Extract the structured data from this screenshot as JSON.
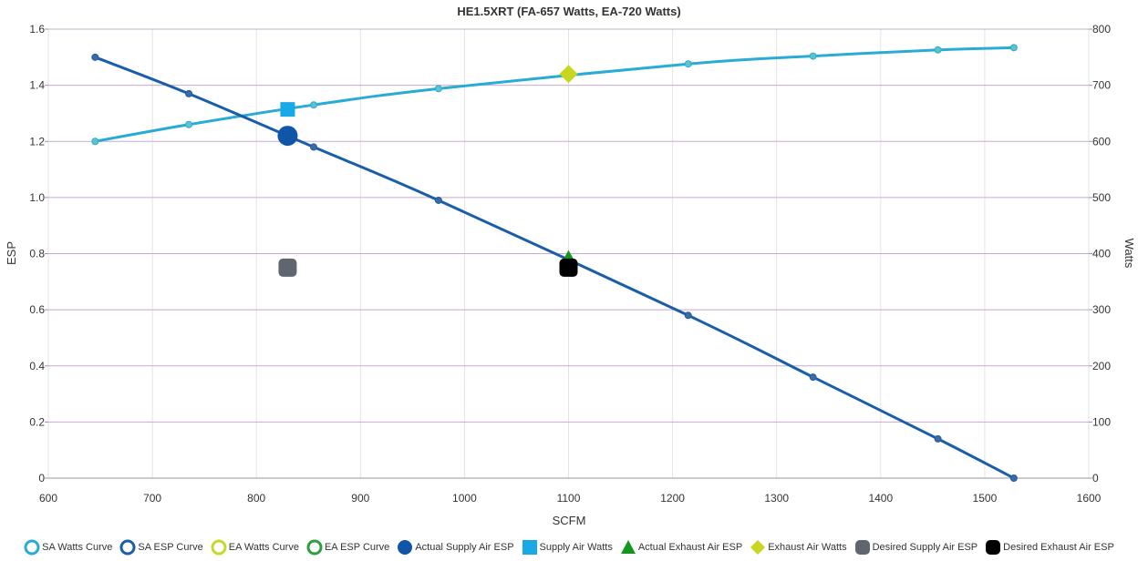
{
  "chart_data": {
    "type": "line",
    "title": "HE1.5XRT (FA-657 Watts, EA-720 Watts)",
    "xlabel": "SCFM",
    "ylabel_left": "ESP",
    "ylabel_right": "Watts",
    "xlim": [
      600,
      1600
    ],
    "ylim_left": [
      0,
      1.6
    ],
    "ylim_right": [
      0,
      800
    ],
    "x_ticks": [
      "600",
      "700",
      "800",
      "900",
      "1000",
      "1100",
      "1200",
      "1300",
      "1400",
      "1500",
      "1600"
    ],
    "y_left_ticks": [
      "0",
      "0.2",
      "0.4",
      "0.6",
      "0.8",
      "1.0",
      "1.2",
      "1.4",
      "1.6"
    ],
    "y_right_ticks": [
      "0",
      "100",
      "200",
      "300",
      "400",
      "500",
      "600",
      "700",
      "800"
    ],
    "grid": true,
    "legend_position": "bottom",
    "series": [
      {
        "name": "SA Watts Curve",
        "axis": "right",
        "kind": "line",
        "color": "#29abd6",
        "x": [
          645,
          735,
          855,
          975,
          1215,
          1335,
          1455,
          1528
        ],
        "y": [
          600,
          630,
          665,
          694,
          738,
          752,
          763,
          767
        ]
      },
      {
        "name": "SA ESP Curve",
        "axis": "left",
        "kind": "line",
        "color": "#1a5ea8",
        "x": [
          645,
          735,
          855,
          975,
          1215,
          1335,
          1455,
          1528
        ],
        "y": [
          1.5,
          1.37,
          1.18,
          0.99,
          0.58,
          0.36,
          0.14,
          0.0
        ]
      },
      {
        "name": "EA Watts Curve",
        "axis": "right",
        "kind": "line",
        "color": "#c5d82c",
        "x": [],
        "y": []
      },
      {
        "name": "EA ESP Curve",
        "axis": "left",
        "kind": "line",
        "color": "#2e9e3e",
        "x": [],
        "y": []
      },
      {
        "name": "Actual Supply Air ESP",
        "axis": "left",
        "kind": "point",
        "marker": "circle",
        "color": "#1155a8",
        "x": [
          830
        ],
        "y": [
          1.22
        ]
      },
      {
        "name": "Supply Air Watts",
        "axis": "right",
        "kind": "point",
        "marker": "square",
        "color": "#19a9e6",
        "x": [
          830
        ],
        "y": [
          657
        ]
      },
      {
        "name": "Actual Exhaust Air ESP",
        "axis": "left",
        "kind": "point",
        "marker": "triangle",
        "color": "#13961f",
        "x": [
          1100
        ],
        "y": [
          0.78
        ]
      },
      {
        "name": "Exhaust Air Watts",
        "axis": "right",
        "kind": "point",
        "marker": "diamond",
        "color": "#c8d61e",
        "x": [
          1100
        ],
        "y": [
          720
        ]
      },
      {
        "name": "Desired Supply Air ESP",
        "axis": "left",
        "kind": "point",
        "marker": "rounded-square",
        "color": "#5f6670",
        "x": [
          830
        ],
        "y": [
          0.75
        ]
      },
      {
        "name": "Desired Exhaust Air ESP",
        "axis": "left",
        "kind": "point",
        "marker": "rounded-square",
        "color": "#000000",
        "x": [
          1100
        ],
        "y": [
          0.75
        ]
      }
    ]
  }
}
